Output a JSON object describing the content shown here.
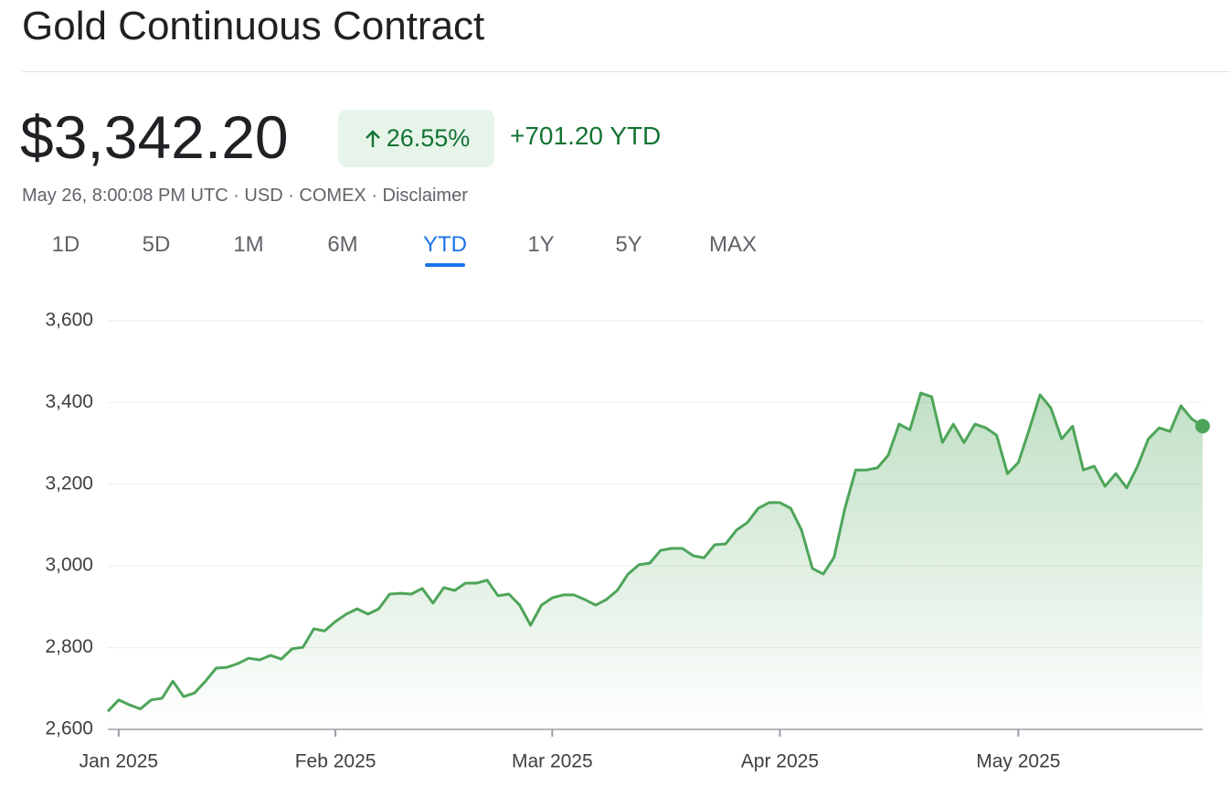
{
  "header": {
    "title": "Gold Continuous Contract",
    "price": "$3,342.20",
    "change_percent": "26.55%",
    "change_value": "+701.20 YTD",
    "subtitle": "May 26, 8:00:08 PM UTC · USD · COMEX · Disclaimer"
  },
  "tabs": {
    "items": [
      "1D",
      "5D",
      "1M",
      "6M",
      "YTD",
      "1Y",
      "5Y",
      "MAX"
    ],
    "selected": 4
  },
  "chart_data": {
    "type": "line",
    "color": "#4ea55a",
    "grid": true,
    "ylim": [
      2600,
      3600
    ],
    "yticks": [
      {
        "value": 2600,
        "label": "2,600"
      },
      {
        "value": 2800,
        "label": "2,800"
      },
      {
        "value": 3000,
        "label": "3,000"
      },
      {
        "value": 3200,
        "label": "3,200"
      },
      {
        "value": 3400,
        "label": "3,400"
      },
      {
        "value": 3600,
        "label": "3,600"
      }
    ],
    "categories": [
      null,
      "Jan 2025",
      null,
      null,
      null,
      null,
      null,
      null,
      null,
      null,
      null,
      null,
      null,
      null,
      null,
      null,
      null,
      null,
      null,
      null,
      null,
      "Feb 2025",
      null,
      null,
      null,
      null,
      null,
      null,
      null,
      null,
      null,
      null,
      null,
      null,
      null,
      null,
      null,
      null,
      null,
      null,
      null,
      "Mar 2025",
      null,
      null,
      null,
      null,
      null,
      null,
      null,
      null,
      null,
      null,
      null,
      null,
      null,
      null,
      null,
      null,
      null,
      null,
      null,
      null,
      "Apr 2025",
      null,
      null,
      null,
      null,
      null,
      null,
      null,
      null,
      null,
      null,
      null,
      null,
      null,
      null,
      null,
      null,
      null,
      null,
      null,
      null,
      null,
      "May 2025",
      null,
      null,
      null,
      null,
      null,
      null,
      null,
      null,
      null,
      null,
      null,
      null,
      null,
      null,
      null,
      null,
      null
    ],
    "values": [
      2644,
      2672,
      2660,
      2650,
      2672,
      2676,
      2718,
      2680,
      2689,
      2718,
      2750,
      2752,
      2761,
      2774,
      2770,
      2781,
      2772,
      2797,
      2801,
      2846,
      2841,
      2864,
      2882,
      2895,
      2882,
      2895,
      2931,
      2933,
      2931,
      2945,
      2909,
      2947,
      2940,
      2958,
      2958,
      2965,
      2927,
      2931,
      2904,
      2855,
      2904,
      2922,
      2929,
      2929,
      2918,
      2904,
      2918,
      2940,
      2980,
      3003,
      3007,
      3038,
      3043,
      3043,
      3025,
      3020,
      3052,
      3054,
      3088,
      3106,
      3141,
      3155,
      3155,
      3141,
      3088,
      2994,
      2980,
      3021,
      3141,
      3235,
      3235,
      3240,
      3271,
      3347,
      3333,
      3423,
      3414,
      3302,
      3347,
      3302,
      3347,
      3338,
      3320,
      3226,
      3253,
      3333,
      3419,
      3387,
      3311,
      3342,
      3235,
      3244,
      3195,
      3226,
      3191,
      3244,
      3311,
      3338,
      3329,
      3392,
      3360,
      3342.2
    ]
  }
}
